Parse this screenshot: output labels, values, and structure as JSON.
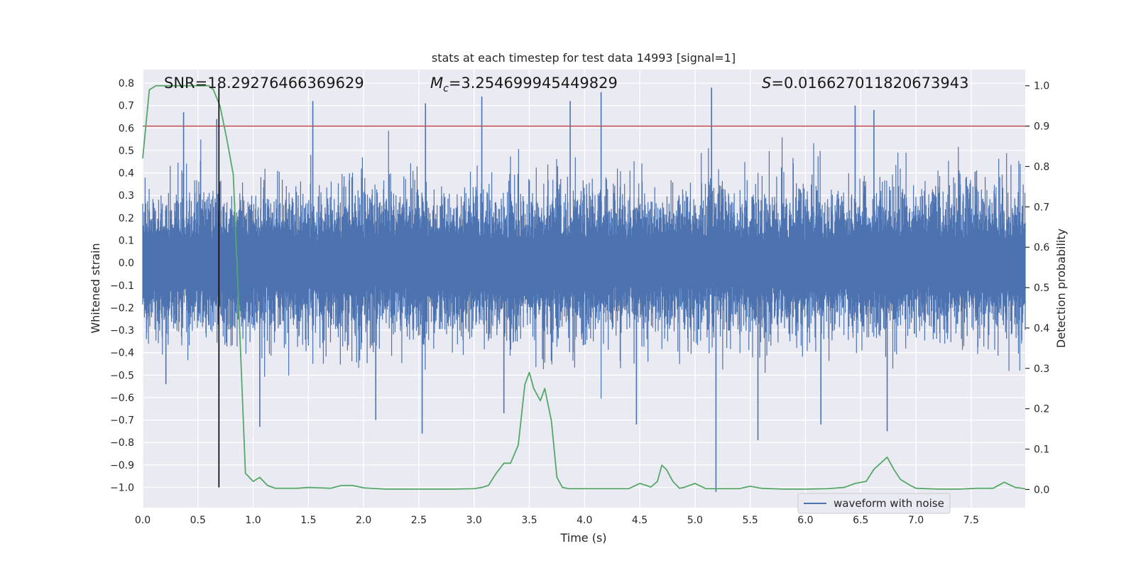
{
  "chart_data": {
    "type": "line",
    "title": "stats at each timestep for test data 14993 [signal=1]",
    "xlabel": "Time (s)",
    "ylabel": "Whitened strain",
    "y2label": "Detection probability",
    "xlim": [
      0.0,
      7.99
    ],
    "ylim": [
      -1.09,
      0.86
    ],
    "y2lim": [
      -0.045,
      1.04
    ],
    "x_ticks": [
      0.0,
      0.5,
      1.0,
      1.5,
      2.0,
      2.5,
      3.0,
      3.5,
      4.0,
      4.5,
      5.0,
      5.5,
      6.0,
      6.5,
      7.0,
      7.5
    ],
    "x_tick_labels": [
      "0.0",
      "0.5",
      "1.0",
      "1.5",
      "2.0",
      "2.5",
      "3.0",
      "3.5",
      "4.0",
      "4.5",
      "5.0",
      "5.5",
      "6.0",
      "6.5",
      "7.0",
      "7.5"
    ],
    "y_ticks": [
      0.8,
      0.7,
      0.6,
      0.5,
      0.4,
      0.3,
      0.2,
      0.1,
      0.0,
      -0.1,
      -0.2,
      -0.3,
      -0.4,
      -0.5,
      -0.6,
      -0.7,
      -0.8,
      -0.9,
      -1.0
    ],
    "y_tick_labels": [
      "0.8",
      "0.7",
      "0.6",
      "0.5",
      "0.4",
      "0.3",
      "0.2",
      "0.1",
      "0.0",
      "−0.1",
      "−0.2",
      "−0.3",
      "−0.4",
      "−0.5",
      "−0.6",
      "−0.7",
      "−0.8",
      "−0.9",
      "−1.0"
    ],
    "y2_ticks": [
      1.0,
      0.9,
      0.8,
      0.7,
      0.6,
      0.5,
      0.4,
      0.3,
      0.2,
      0.1,
      0.0
    ],
    "y2_tick_labels": [
      "1.0",
      "0.9",
      "0.8",
      "0.7",
      "0.6",
      "0.5",
      "0.4",
      "0.3",
      "0.2",
      "0.1",
      "0.0"
    ],
    "annotations": {
      "snr": "SNR=18.29276466369629",
      "mc_symbol": "M",
      "mc_sub": "c",
      "mc_value": "=3.254699945449829",
      "s_symbol": "S",
      "s_value": "=0.016627011820673943"
    },
    "legend": {
      "position": "lower-right",
      "entries": [
        "waveform with noise"
      ]
    },
    "threshold_line": {
      "y2": 0.9,
      "color": "#c44e52"
    },
    "marker_line": {
      "x": 0.69,
      "y_bottom": -1.0,
      "y_top": 0.8,
      "color": "#000000"
    },
    "waveform": {
      "name": "waveform with noise",
      "color": "#4c72b0",
      "band_rms": 0.13,
      "notable_spikes": [
        {
          "x": 0.37,
          "y": 0.67
        },
        {
          "x": 0.67,
          "y": 0.64
        },
        {
          "x": 1.54,
          "y": 0.72
        },
        {
          "x": 2.56,
          "y": 0.71
        },
        {
          "x": 3.07,
          "y": 0.74
        },
        {
          "x": 3.87,
          "y": 0.72
        },
        {
          "x": 4.15,
          "y": 0.76
        },
        {
          "x": 5.15,
          "y": 0.78
        },
        {
          "x": 6.45,
          "y": 0.7
        },
        {
          "x": 6.62,
          "y": 0.68
        },
        {
          "x": 0.21,
          "y": -0.54
        },
        {
          "x": 1.06,
          "y": -0.73
        },
        {
          "x": 2.11,
          "y": -0.7
        },
        {
          "x": 2.53,
          "y": -0.76
        },
        {
          "x": 3.27,
          "y": -0.67
        },
        {
          "x": 4.47,
          "y": -0.72
        },
        {
          "x": 5.19,
          "y": -1.02
        },
        {
          "x": 5.57,
          "y": -0.79
        },
        {
          "x": 6.14,
          "y": -0.72
        },
        {
          "x": 6.74,
          "y": -0.75
        }
      ]
    },
    "probability": {
      "name": "detection probability",
      "color": "#55a868",
      "x": [
        0.0,
        0.06,
        0.12,
        0.2,
        0.3,
        0.4,
        0.5,
        0.6,
        0.64,
        0.7,
        0.76,
        0.82,
        0.87,
        0.93,
        1.0,
        1.06,
        1.13,
        1.2,
        1.3,
        1.4,
        1.5,
        1.6,
        1.7,
        1.8,
        1.9,
        2.0,
        2.2,
        2.5,
        2.8,
        3.0,
        3.07,
        3.13,
        3.2,
        3.27,
        3.33,
        3.4,
        3.46,
        3.5,
        3.54,
        3.6,
        3.64,
        3.7,
        3.75,
        3.8,
        3.86,
        4.0,
        4.2,
        4.4,
        4.5,
        4.56,
        4.6,
        4.66,
        4.7,
        4.74,
        4.8,
        4.86,
        4.9,
        5.0,
        5.1,
        5.2,
        5.3,
        5.4,
        5.5,
        5.6,
        5.8,
        6.0,
        6.2,
        6.35,
        6.45,
        6.55,
        6.62,
        6.74,
        6.8,
        6.86,
        6.95,
        7.0,
        7.2,
        7.4,
        7.55,
        7.7,
        7.8,
        7.9,
        7.99
      ],
      "y": [
        0.82,
        0.99,
        1.0,
        1.0,
        1.0,
        1.0,
        1.0,
        1.0,
        0.99,
        0.95,
        0.87,
        0.78,
        0.45,
        0.04,
        0.02,
        0.03,
        0.01,
        0.003,
        0.003,
        0.003,
        0.005,
        0.004,
        0.003,
        0.01,
        0.01,
        0.004,
        0.001,
        0.001,
        0.001,
        0.002,
        0.005,
        0.01,
        0.04,
        0.065,
        0.065,
        0.11,
        0.26,
        0.29,
        0.25,
        0.22,
        0.25,
        0.17,
        0.03,
        0.005,
        0.002,
        0.002,
        0.002,
        0.002,
        0.015,
        0.01,
        0.006,
        0.02,
        0.06,
        0.05,
        0.02,
        0.003,
        0.005,
        0.015,
        0.002,
        0.002,
        0.002,
        0.002,
        0.008,
        0.003,
        0.001,
        0.001,
        0.002,
        0.005,
        0.015,
        0.02,
        0.05,
        0.08,
        0.05,
        0.025,
        0.01,
        0.003,
        0.001,
        0.001,
        0.003,
        0.003,
        0.018,
        0.005,
        0.002
      ]
    }
  }
}
